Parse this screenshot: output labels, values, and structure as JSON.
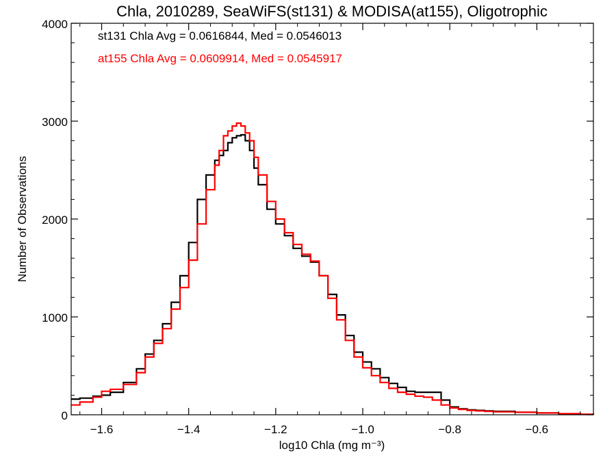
{
  "chart_data": {
    "type": "line",
    "title": "Chla, 2010289, SeaWiFS(st131) & MODISA(at155), Oligotrophic",
    "xlabel": "log10 Chla (mg m⁻³)",
    "ylabel": "Number of Observations",
    "xlim": [
      -1.67,
      -0.47
    ],
    "ylim": [
      0,
      4000
    ],
    "x_ticks": [
      -1.6,
      -1.4,
      -1.2,
      -1.0,
      -0.8,
      -0.6
    ],
    "x_tick_labels": [
      "−1.6",
      "−1.4",
      "−1.2",
      "−1.0",
      "−0.8",
      "−0.6"
    ],
    "y_ticks": [
      0,
      1000,
      2000,
      3000,
      4000
    ],
    "y_tick_labels": [
      "0",
      "1000",
      "2000",
      "3000",
      "4000"
    ],
    "grid": false,
    "annotations": [
      {
        "text": "st131 Chla Avg = 0.0616844, Med = 0.0546013",
        "color": "#000000"
      },
      {
        "text": "at155 Chla Avg = 0.0609914, Med = 0.0545917",
        "color": "#ff0000"
      }
    ],
    "series": [
      {
        "color": "#000000",
        "x": [
          -1.67,
          -1.65,
          -1.62,
          -1.6,
          -1.58,
          -1.55,
          -1.52,
          -1.5,
          -1.48,
          -1.46,
          -1.44,
          -1.42,
          -1.4,
          -1.38,
          -1.36,
          -1.34,
          -1.33,
          -1.32,
          -1.31,
          -1.3,
          -1.29,
          -1.28,
          -1.27,
          -1.26,
          -1.25,
          -1.24,
          -1.22,
          -1.2,
          -1.18,
          -1.16,
          -1.14,
          -1.12,
          -1.1,
          -1.08,
          -1.06,
          -1.04,
          -1.02,
          -1.0,
          -0.98,
          -0.96,
          -0.94,
          -0.92,
          -0.9,
          -0.88,
          -0.86,
          -0.84,
          -0.82,
          -0.8,
          -0.78,
          -0.76,
          -0.74,
          -0.72,
          -0.7,
          -0.65,
          -0.6,
          -0.55,
          -0.5,
          -0.47
        ],
        "y": [
          160,
          170,
          190,
          200,
          230,
          330,
          470,
          620,
          760,
          930,
          1150,
          1420,
          1760,
          2200,
          2450,
          2600,
          2650,
          2700,
          2780,
          2830,
          2850,
          2860,
          2800,
          2700,
          2520,
          2350,
          2100,
          1950,
          1830,
          1700,
          1620,
          1560,
          1420,
          1230,
          1020,
          810,
          640,
          540,
          470,
          380,
          320,
          280,
          240,
          230,
          230,
          230,
          150,
          80,
          60,
          50,
          45,
          40,
          35,
          25,
          18,
          10,
          5,
          3
        ]
      },
      {
        "color": "#ff0000",
        "x": [
          -1.67,
          -1.65,
          -1.62,
          -1.6,
          -1.58,
          -1.55,
          -1.52,
          -1.5,
          -1.48,
          -1.46,
          -1.44,
          -1.42,
          -1.4,
          -1.38,
          -1.36,
          -1.34,
          -1.33,
          -1.32,
          -1.31,
          -1.3,
          -1.29,
          -1.28,
          -1.27,
          -1.26,
          -1.25,
          -1.24,
          -1.22,
          -1.2,
          -1.18,
          -1.16,
          -1.14,
          -1.12,
          -1.1,
          -1.08,
          -1.06,
          -1.04,
          -1.02,
          -1.0,
          -0.98,
          -0.96,
          -0.94,
          -0.92,
          -0.9,
          -0.88,
          -0.86,
          -0.84,
          -0.82,
          -0.8,
          -0.78,
          -0.76,
          -0.74,
          -0.72,
          -0.7,
          -0.65,
          -0.6,
          -0.55,
          -0.5,
          -0.47
        ],
        "y": [
          100,
          130,
          180,
          240,
          260,
          310,
          430,
          590,
          730,
          880,
          1080,
          1300,
          1580,
          1950,
          2300,
          2550,
          2700,
          2850,
          2900,
          2950,
          2980,
          2950,
          2880,
          2800,
          2630,
          2450,
          2180,
          2000,
          1860,
          1740,
          1640,
          1570,
          1420,
          1190,
          970,
          760,
          590,
          480,
          400,
          330,
          270,
          230,
          210,
          190,
          180,
          150,
          100,
          70,
          55,
          45,
          40,
          35,
          30,
          25,
          18,
          12,
          5,
          3
        ]
      }
    ]
  }
}
